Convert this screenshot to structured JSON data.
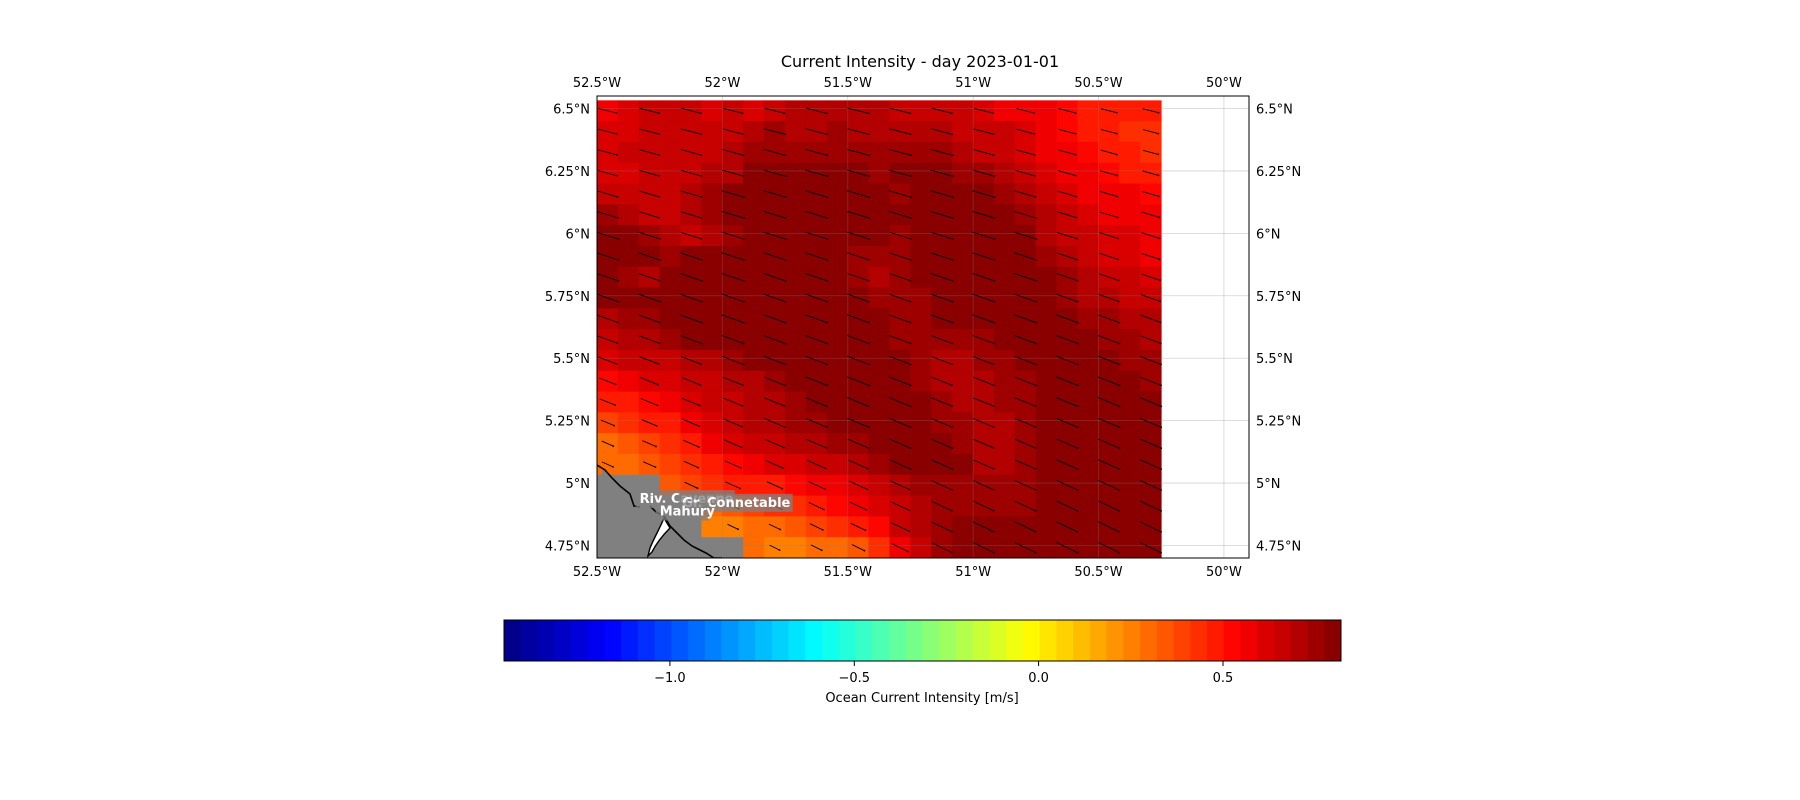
{
  "title": "Current Intensity - day 2023-01-01",
  "map": {
    "lon_range": [
      -52.5,
      -49.9
    ],
    "lat_range": [
      4.7,
      6.55
    ],
    "x_ticks": [
      {
        "value": -52.5,
        "label": "52.5°W"
      },
      {
        "value": -52.0,
        "label": "52°W"
      },
      {
        "value": -51.5,
        "label": "51.5°W"
      },
      {
        "value": -51.0,
        "label": "51°W"
      },
      {
        "value": -50.5,
        "label": "50.5°W"
      },
      {
        "value": -50.0,
        "label": "50°W"
      }
    ],
    "y_ticks": [
      {
        "value": 6.5,
        "label": "6.5°N"
      },
      {
        "value": 6.25,
        "label": "6.25°N"
      },
      {
        "value": 6.0,
        "label": "6°N"
      },
      {
        "value": 5.75,
        "label": "5.75°N"
      },
      {
        "value": 5.5,
        "label": "5.5°N"
      },
      {
        "value": 5.25,
        "label": "5.25°N"
      },
      {
        "value": 5.0,
        "label": "5°N"
      },
      {
        "value": 4.75,
        "label": "4.75°N"
      }
    ],
    "grid_lines": true,
    "land_color": "#808080",
    "place_labels": [
      {
        "text": "Riv. Cayenne",
        "lon": -52.33,
        "lat": 4.92
      },
      {
        "text": "Gr. Connetable",
        "lon": -52.16,
        "lat": 4.905
      },
      {
        "text": "Mahury",
        "lon": -52.25,
        "lat": 4.87
      }
    ]
  },
  "colorbar": {
    "label": "Ocean Current Intensity [m/s]",
    "vmin": -1.45,
    "vmax": 0.82,
    "levels": 50,
    "colormap": "jet",
    "ticks": [
      {
        "value": -1.0,
        "label": "−1.0"
      },
      {
        "value": -0.5,
        "label": "−0.5"
      },
      {
        "value": 0.0,
        "label": "0.0"
      },
      {
        "value": 0.5,
        "label": "0.5"
      }
    ]
  },
  "chart_data": {
    "type": "heatmap",
    "title": "Current Intensity - day 2023-01-01",
    "value_unit": "m/s",
    "x_label": "",
    "y_label": "",
    "lon_edges_start": -52.5,
    "lon_step": 0.0833,
    "lat_edges_start": 4.7,
    "lat_step": 0.0833,
    "grid_description": "rows listed north to south, columns west to east; null = land",
    "rows": [
      [
        0.58,
        0.6,
        0.66,
        0.66,
        0.66,
        0.62,
        0.64,
        0.62,
        0.66,
        0.7,
        0.71,
        0.72,
        0.72,
        0.71,
        0.68,
        0.68,
        0.68,
        0.66,
        0.6,
        0.58,
        0.56,
        0.55,
        0.52,
        0.49,
        0.47,
        0.46,
        0.47
      ],
      [
        0.6,
        0.62,
        0.64,
        0.66,
        0.68,
        0.68,
        0.66,
        0.72,
        0.74,
        0.72,
        0.72,
        0.74,
        0.72,
        0.72,
        0.72,
        0.72,
        0.72,
        0.68,
        0.66,
        0.64,
        0.6,
        0.56,
        0.53,
        0.5,
        0.47,
        0.45,
        0.45
      ],
      [
        0.62,
        0.64,
        0.64,
        0.68,
        0.68,
        0.68,
        0.72,
        0.74,
        0.75,
        0.76,
        0.76,
        0.74,
        0.76,
        0.75,
        0.76,
        0.74,
        0.76,
        0.72,
        0.68,
        0.66,
        0.62,
        0.58,
        0.55,
        0.52,
        0.49,
        0.46,
        0.45
      ],
      [
        0.62,
        0.62,
        0.64,
        0.67,
        0.68,
        0.7,
        0.72,
        0.78,
        0.78,
        0.78,
        0.78,
        0.78,
        0.78,
        0.76,
        0.78,
        0.78,
        0.78,
        0.76,
        0.74,
        0.7,
        0.66,
        0.62,
        0.58,
        0.55,
        0.52,
        0.5,
        0.48
      ],
      [
        0.68,
        0.66,
        0.64,
        0.66,
        0.7,
        0.74,
        0.78,
        0.78,
        0.78,
        0.78,
        0.78,
        0.78,
        0.78,
        0.78,
        0.77,
        0.78,
        0.78,
        0.78,
        0.78,
        0.74,
        0.72,
        0.68,
        0.62,
        0.58,
        0.56,
        0.55,
        0.52
      ],
      [
        0.74,
        0.7,
        0.66,
        0.68,
        0.72,
        0.76,
        0.78,
        0.78,
        0.78,
        0.78,
        0.78,
        0.78,
        0.78,
        0.78,
        0.78,
        0.78,
        0.78,
        0.78,
        0.78,
        0.78,
        0.74,
        0.7,
        0.64,
        0.6,
        0.58,
        0.57,
        0.56
      ],
      [
        0.78,
        0.78,
        0.76,
        0.72,
        0.68,
        0.72,
        0.76,
        0.78,
        0.78,
        0.78,
        0.78,
        0.78,
        0.78,
        0.78,
        0.76,
        0.78,
        0.78,
        0.78,
        0.78,
        0.78,
        0.78,
        0.72,
        0.68,
        0.64,
        0.61,
        0.6,
        0.58
      ],
      [
        0.78,
        0.78,
        0.78,
        0.76,
        0.78,
        0.78,
        0.78,
        0.78,
        0.78,
        0.78,
        0.78,
        0.78,
        0.76,
        0.74,
        0.76,
        0.78,
        0.78,
        0.78,
        0.78,
        0.78,
        0.78,
        0.76,
        0.7,
        0.66,
        0.63,
        0.62,
        0.58
      ],
      [
        0.78,
        0.76,
        0.72,
        0.78,
        0.78,
        0.78,
        0.78,
        0.78,
        0.78,
        0.78,
        0.78,
        0.78,
        0.76,
        0.72,
        0.74,
        0.78,
        0.78,
        0.78,
        0.78,
        0.78,
        0.78,
        0.78,
        0.74,
        0.7,
        0.67,
        0.66,
        0.62
      ],
      [
        0.78,
        0.78,
        0.78,
        0.78,
        0.78,
        0.78,
        0.78,
        0.78,
        0.78,
        0.78,
        0.78,
        0.78,
        0.78,
        0.76,
        0.74,
        0.76,
        0.78,
        0.78,
        0.78,
        0.78,
        0.78,
        0.78,
        0.76,
        0.72,
        0.7,
        0.68,
        0.66
      ],
      [
        0.72,
        0.74,
        0.76,
        0.78,
        0.78,
        0.78,
        0.78,
        0.78,
        0.78,
        0.78,
        0.78,
        0.78,
        0.78,
        0.78,
        0.74,
        0.76,
        0.78,
        0.78,
        0.78,
        0.78,
        0.78,
        0.78,
        0.78,
        0.76,
        0.74,
        0.72,
        0.7
      ],
      [
        0.68,
        0.7,
        0.72,
        0.76,
        0.78,
        0.78,
        0.78,
        0.78,
        0.78,
        0.78,
        0.78,
        0.78,
        0.78,
        0.78,
        0.76,
        0.74,
        0.76,
        0.74,
        0.76,
        0.78,
        0.78,
        0.78,
        0.78,
        0.78,
        0.76,
        0.74,
        0.72
      ],
      [
        0.62,
        0.64,
        0.66,
        0.68,
        0.7,
        0.72,
        0.76,
        0.78,
        0.78,
        0.78,
        0.78,
        0.78,
        0.78,
        0.78,
        0.78,
        0.76,
        0.72,
        0.72,
        0.74,
        0.76,
        0.78,
        0.78,
        0.78,
        0.78,
        0.78,
        0.76,
        0.74
      ],
      [
        0.52,
        0.56,
        0.6,
        0.62,
        0.64,
        0.68,
        0.7,
        0.72,
        0.76,
        0.78,
        0.78,
        0.78,
        0.78,
        0.78,
        0.78,
        0.76,
        0.72,
        0.7,
        0.72,
        0.74,
        0.76,
        0.78,
        0.78,
        0.78,
        0.78,
        0.78,
        0.76
      ],
      [
        0.48,
        0.5,
        0.54,
        0.58,
        0.62,
        0.66,
        0.68,
        0.7,
        0.72,
        0.76,
        0.78,
        0.78,
        0.78,
        0.78,
        0.78,
        0.78,
        0.74,
        0.72,
        0.72,
        0.74,
        0.76,
        0.78,
        0.78,
        0.78,
        0.78,
        0.78,
        0.78
      ],
      [
        0.38,
        0.42,
        0.46,
        0.5,
        0.56,
        0.62,
        0.66,
        0.7,
        0.72,
        0.74,
        0.76,
        0.78,
        0.78,
        0.78,
        0.78,
        0.78,
        0.76,
        0.74,
        0.72,
        0.72,
        0.74,
        0.78,
        0.78,
        0.78,
        0.78,
        0.78,
        0.78
      ],
      [
        0.3,
        0.36,
        0.4,
        0.44,
        0.5,
        0.56,
        0.6,
        0.64,
        0.66,
        0.7,
        0.72,
        0.74,
        0.76,
        0.78,
        0.78,
        0.78,
        0.78,
        0.74,
        0.7,
        0.72,
        0.74,
        0.78,
        0.78,
        0.78,
        0.78,
        0.78,
        0.78
      ],
      [
        0.28,
        0.3,
        0.34,
        0.38,
        0.44,
        0.48,
        0.52,
        0.56,
        0.6,
        0.62,
        0.64,
        0.66,
        0.7,
        0.74,
        0.78,
        0.78,
        0.78,
        0.78,
        0.72,
        0.72,
        0.74,
        0.78,
        0.78,
        0.78,
        0.78,
        0.78,
        0.78
      ],
      [
        null,
        null,
        null,
        0.34,
        0.38,
        0.42,
        0.46,
        0.48,
        0.5,
        0.52,
        0.56,
        0.58,
        0.62,
        0.66,
        0.7,
        0.74,
        0.76,
        0.76,
        0.74,
        0.74,
        0.76,
        0.78,
        0.78,
        0.78,
        0.78,
        0.78,
        0.78
      ],
      [
        null,
        null,
        null,
        null,
        null,
        0.3,
        0.34,
        0.38,
        0.42,
        0.44,
        0.48,
        0.52,
        0.56,
        0.62,
        0.68,
        0.72,
        0.74,
        0.76,
        0.76,
        0.76,
        0.76,
        0.78,
        0.78,
        0.78,
        0.78,
        0.78,
        0.78
      ],
      [
        null,
        null,
        null,
        null,
        null,
        0.24,
        0.26,
        0.28,
        0.3,
        0.34,
        0.38,
        0.42,
        0.46,
        0.52,
        0.66,
        0.72,
        0.76,
        0.78,
        0.78,
        0.78,
        0.78,
        0.78,
        0.78,
        0.78,
        0.78,
        0.78,
        0.78
      ],
      [
        null,
        null,
        null,
        null,
        null,
        null,
        null,
        0.28,
        0.24,
        0.26,
        0.28,
        0.32,
        0.36,
        0.42,
        0.56,
        0.64,
        0.74,
        0.78,
        0.78,
        0.78,
        0.78,
        0.78,
        0.78,
        0.78,
        0.78,
        0.78,
        0.78
      ]
    ],
    "vectors": {
      "description": "surface current direction as arrows (dx east, dy north, normalized); shown on a regular subsample of the grid",
      "dominant_direction": [
        0.94,
        -0.34
      ]
    }
  }
}
